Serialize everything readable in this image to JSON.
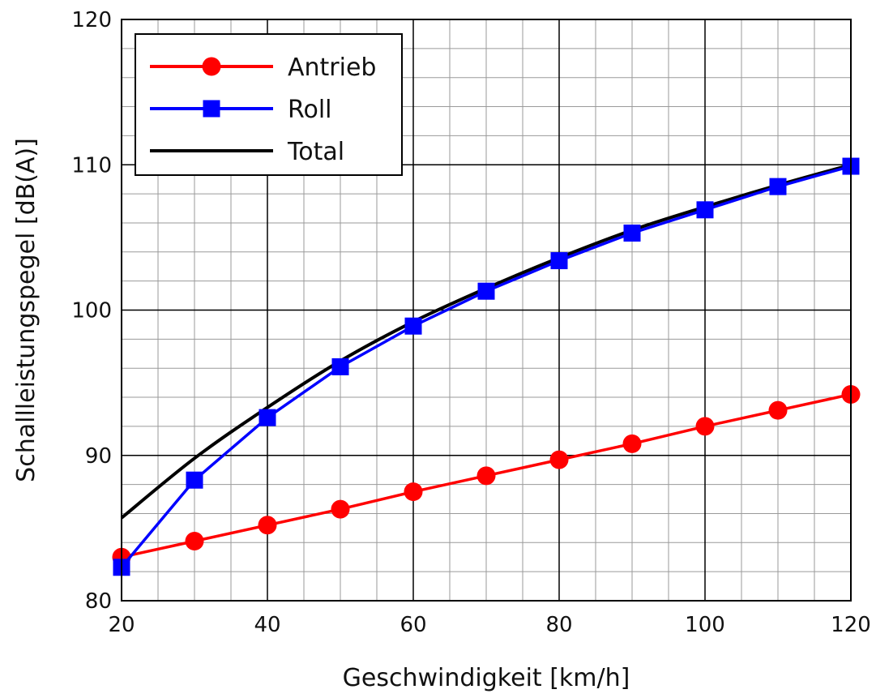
{
  "chart_data": {
    "type": "line",
    "title": "",
    "xlabel": "Geschwindigkeit [km/h]",
    "ylabel": "Schallleistungspegel [dB(A)]",
    "xlim": [
      20,
      120
    ],
    "ylim": [
      80,
      120
    ],
    "x_major_ticks": [
      "20",
      "40",
      "60",
      "80",
      "100",
      "120"
    ],
    "y_major_ticks": [
      "80",
      "90",
      "100",
      "110",
      "120"
    ],
    "x_major_values": [
      20,
      40,
      60,
      80,
      100,
      120
    ],
    "y_major_values": [
      80,
      90,
      100,
      110,
      120
    ],
    "x_minor_step": 5,
    "y_minor_step": 2,
    "grid": true,
    "legend_position": "top-left",
    "series": [
      {
        "name": "Antrieb",
        "color": "#ff0000",
        "marker": "circle",
        "x": [
          20,
          30,
          40,
          50,
          60,
          70,
          80,
          90,
          100,
          110,
          120
        ],
        "y": [
          83.0,
          84.1,
          85.2,
          86.3,
          87.5,
          88.6,
          89.7,
          90.8,
          92.0,
          93.1,
          94.2
        ]
      },
      {
        "name": "Roll",
        "color": "#0000ff",
        "marker": "square",
        "x": [
          20,
          30,
          40,
          50,
          60,
          70,
          80,
          90,
          100,
          110,
          120
        ],
        "y": [
          82.3,
          88.3,
          92.6,
          96.1,
          98.9,
          101.3,
          103.4,
          105.3,
          106.9,
          108.5,
          109.9
        ]
      },
      {
        "name": "Total",
        "color": "#000000",
        "marker": "none",
        "x": [
          20,
          30,
          40,
          50,
          60,
          70,
          80,
          90,
          100,
          110,
          120
        ],
        "y": [
          85.7,
          89.8,
          93.3,
          96.5,
          99.2,
          101.5,
          103.6,
          105.5,
          107.1,
          108.6,
          110.0
        ]
      }
    ]
  }
}
